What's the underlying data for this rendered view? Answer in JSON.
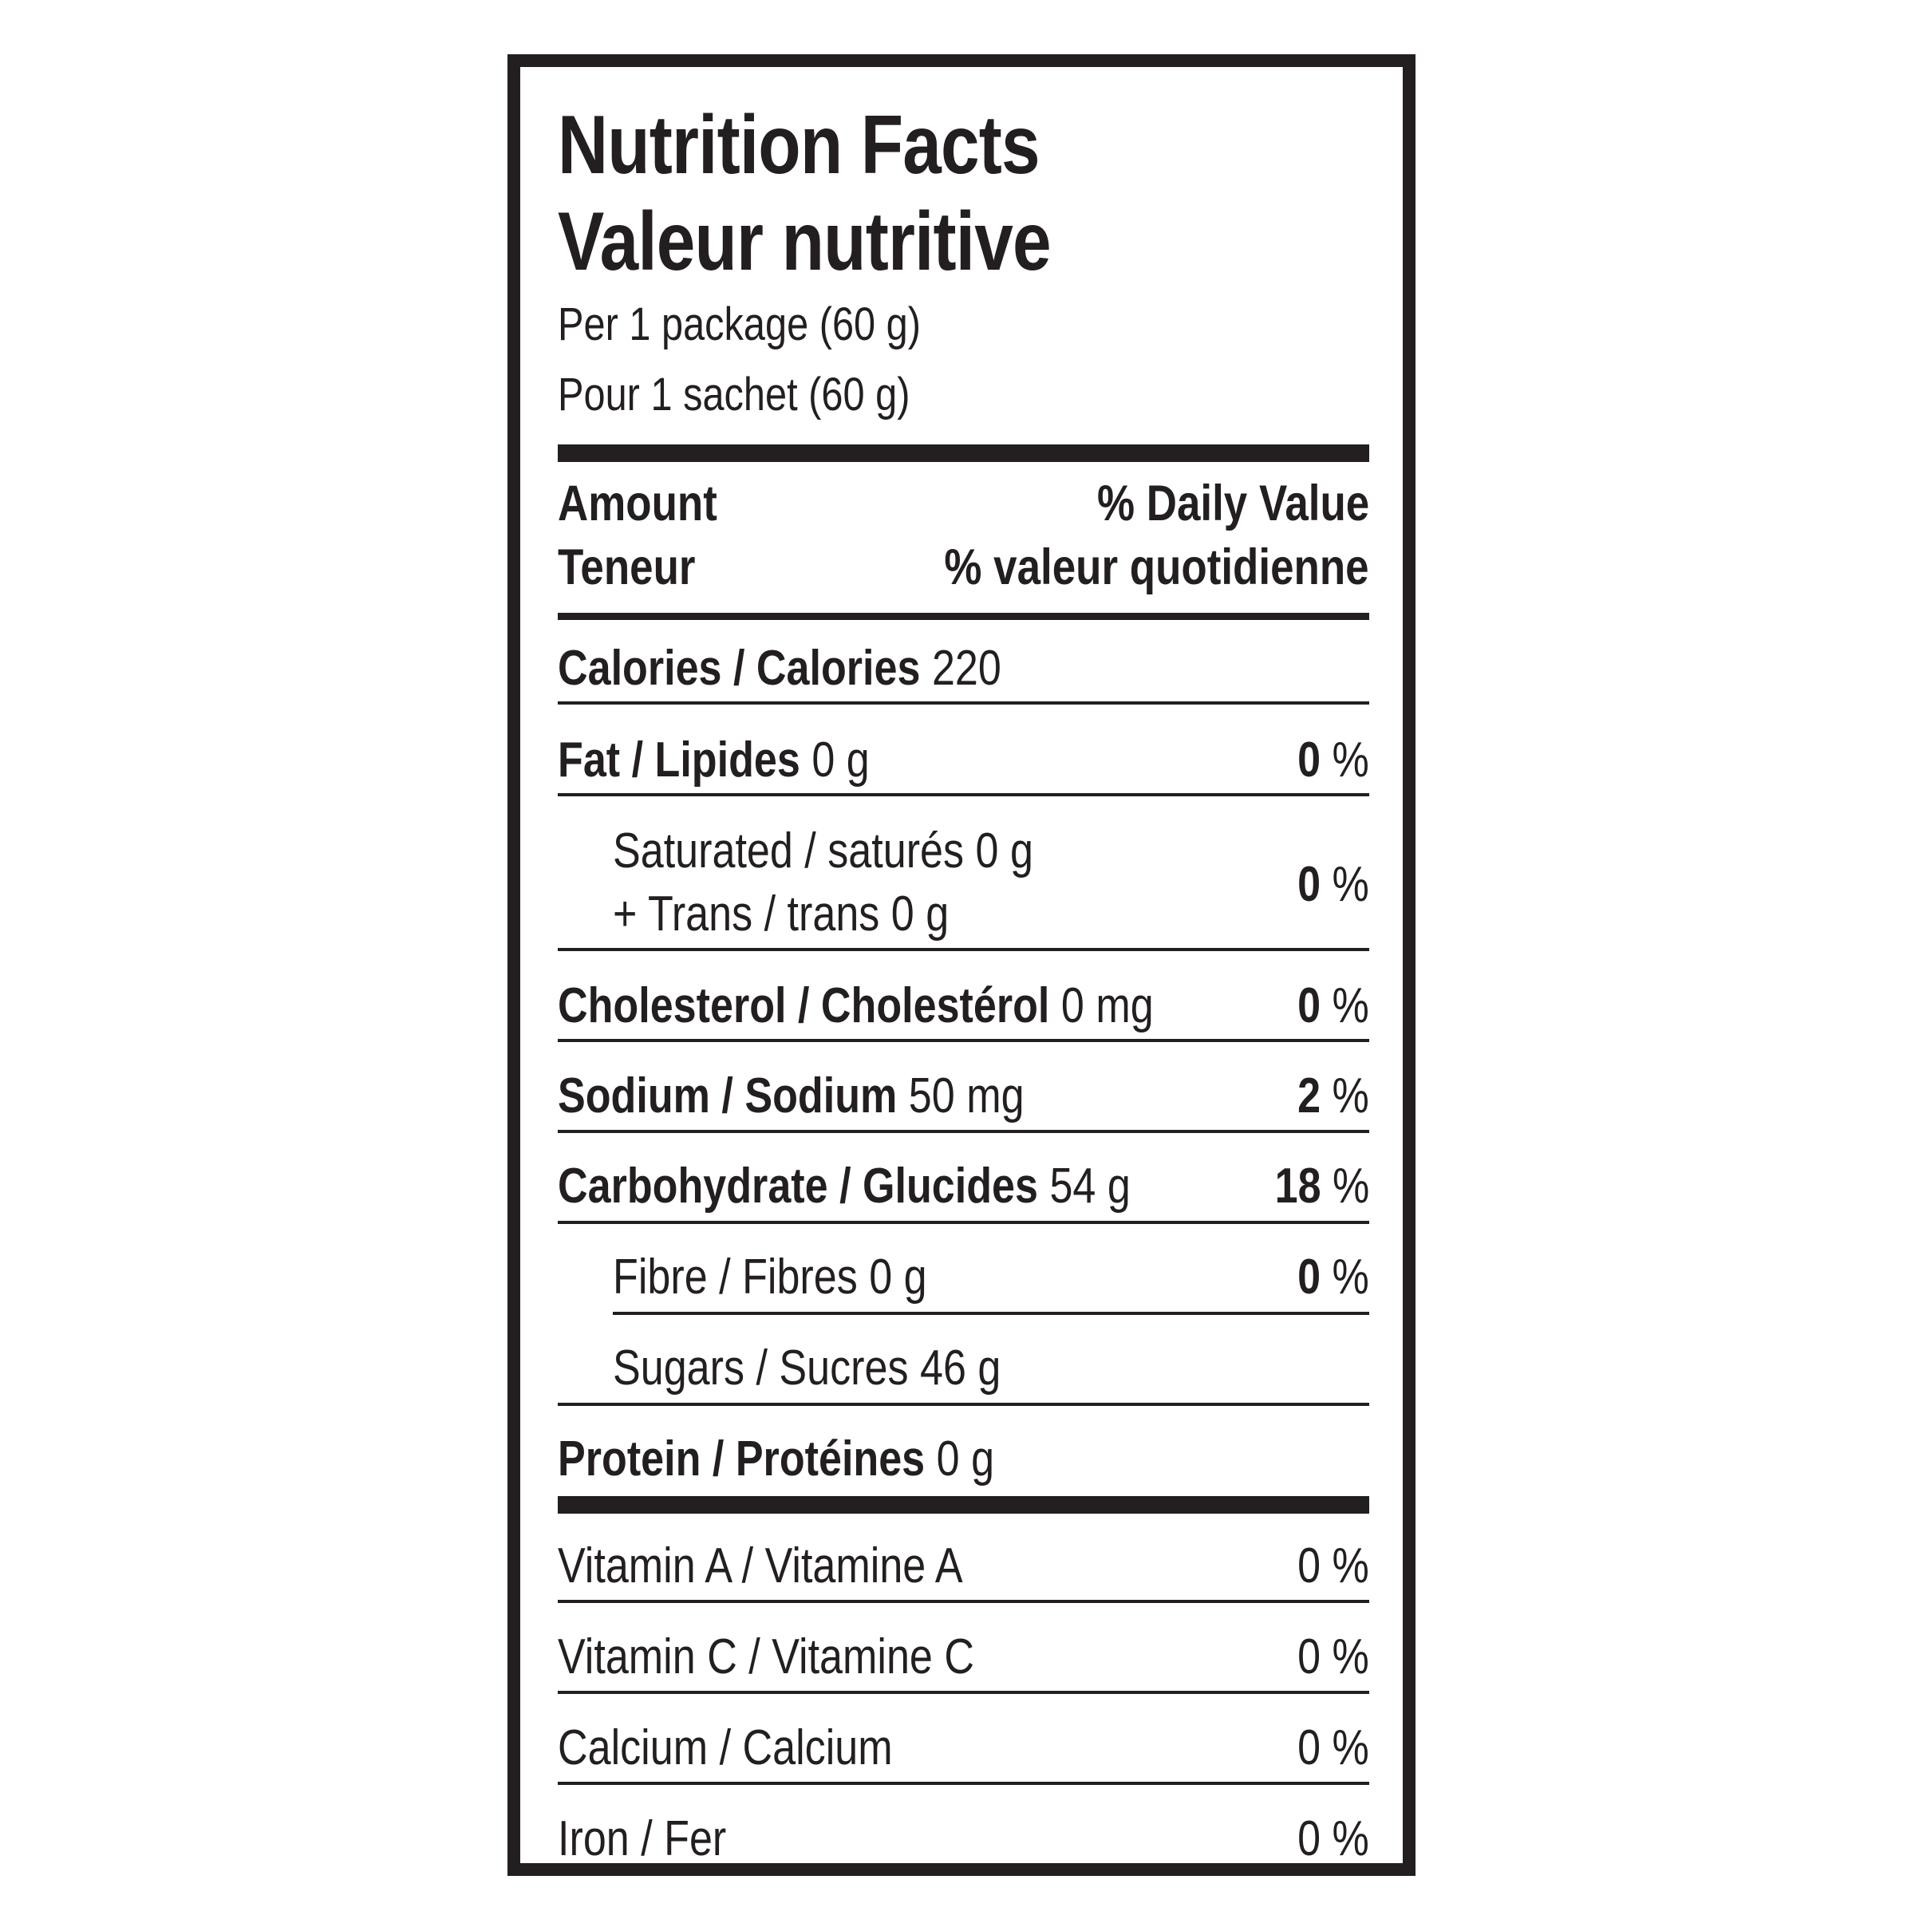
{
  "title": {
    "en": "Nutrition Facts",
    "fr": "Valeur nutritive"
  },
  "serving": {
    "en": "Per 1 package (60 g)",
    "fr": "Pour 1 sachet (60 g)"
  },
  "header": {
    "amount_en": "Amount",
    "amount_fr": "Teneur",
    "dv_en": "% Daily Value",
    "dv_fr": "% valeur quotidienne"
  },
  "calories": {
    "label": "Calories / Calories",
    "value": "220"
  },
  "nutrients": {
    "fat": {
      "label": "Fat / Lipides",
      "amount": "0 g",
      "dv": "0",
      "unit": "%"
    },
    "saturated": {
      "line1": "Saturated / saturés 0 g",
      "line2": "+ Trans / trans 0 g",
      "dv": "0",
      "unit": "%"
    },
    "cholesterol": {
      "label": "Cholesterol / Cholestérol",
      "amount": "0 mg",
      "dv": "0",
      "unit": "%"
    },
    "sodium": {
      "label": "Sodium / Sodium",
      "amount": "50 mg",
      "dv": "2",
      "unit": "%"
    },
    "carbohydrate": {
      "label": "Carbohydrate / Glucides",
      "amount": "54 g",
      "dv": "18",
      "unit": "%"
    },
    "fibre": {
      "label": "Fibre / Fibres 0 g",
      "dv": "0",
      "unit": "%"
    },
    "sugars": {
      "label": "Sugars / Sucres 46 g"
    },
    "protein": {
      "label": "Protein / Protéines",
      "amount": "0 g"
    }
  },
  "vitamins": {
    "vitamin_a": {
      "label": "Vitamin A / Vitamine A",
      "dv": "0 %"
    },
    "vitamin_c": {
      "label": "Vitamin C / Vitamine C",
      "dv": "0 %"
    },
    "calcium": {
      "label": "Calcium / Calcium",
      "dv": "0 %"
    },
    "iron": {
      "label": "Iron / Fer",
      "dv": "0 %"
    }
  }
}
